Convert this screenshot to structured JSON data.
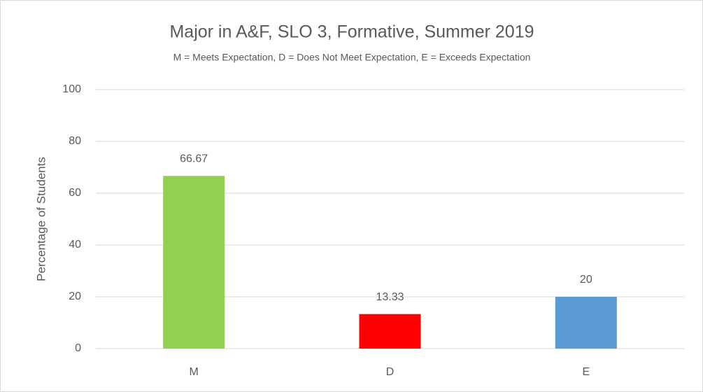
{
  "chart_data": {
    "type": "bar",
    "title": "Major in A&F, SLO 3, Formative, Summer 2019",
    "subtitle": "M = Meets Expectation, D = Does Not Meet Expectation, E = Exceeds Expectation",
    "y_label": "Percentage of Students",
    "categories": [
      "M",
      "D",
      "E"
    ],
    "values": [
      66.67,
      13.33,
      20
    ],
    "colors": [
      "#92d050",
      "#ff0000",
      "#5b9bd5"
    ],
    "ylim": [
      0,
      100
    ],
    "yticks": [
      0,
      20,
      40,
      60,
      80,
      100
    ],
    "grid": true,
    "data_labels": true
  }
}
